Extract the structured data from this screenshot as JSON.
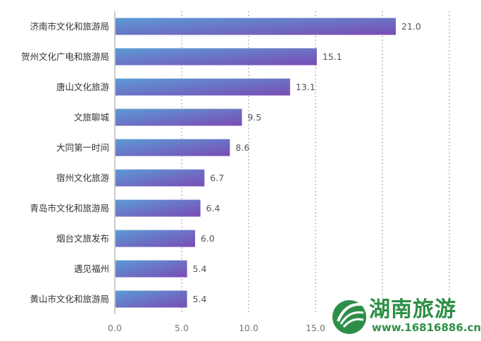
{
  "chart_data": {
    "type": "bar",
    "orientation": "horizontal",
    "categories": [
      "济南市文化和旅游局",
      "贺州文化广电和旅游局",
      "唐山文化旅游",
      "文旅聊城",
      "大同第一时间",
      "宿州文化旅游",
      "青岛市文化和旅游局",
      "烟台文旅发布",
      "遇见福州",
      "黄山市文化和旅游局"
    ],
    "values": [
      21.0,
      15.1,
      13.1,
      9.5,
      8.6,
      6.7,
      6.4,
      6.0,
      5.4,
      5.4
    ],
    "value_labels": [
      "21.0",
      "15.1",
      "13.1",
      "9.5",
      "8.6",
      "6.7",
      "6.4",
      "6.0",
      "5.4",
      "5.4"
    ],
    "x_ticks": [
      "0.0",
      "5.0",
      "10.0",
      "15.0"
    ],
    "xlim": [
      0,
      25
    ],
    "grid": "vertical dotted",
    "colors": {
      "bar_start": "#5b9bd5",
      "bar_end": "#7a4bb5",
      "grid": "#999999"
    }
  },
  "watermark": {
    "title": "湖南旅游",
    "url": "www.16816886.cn"
  }
}
